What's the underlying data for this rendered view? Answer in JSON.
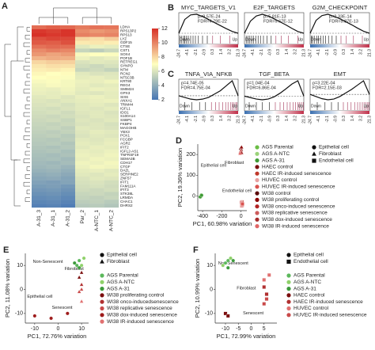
{
  "chart_data": [
    {
      "type": "heatmap",
      "panel_label": "A",
      "rows": [
        "LDHA",
        "RPS13P2",
        "RPS13",
        "LYZ",
        "GDF15",
        "CTSE",
        "CST1",
        "SOX4",
        "POF1B",
        "RETREG1",
        "SYNPO",
        "NTM",
        "RCN2",
        "NT5C3B",
        "KRT80",
        "REG4",
        "SMIM24",
        "GPX3",
        "SIX6",
        "ANXA1",
        "TRIM44",
        "IGFL1",
        "IDO1",
        "S100A14",
        "SSBP1",
        "FKBP4",
        "MAGOHB",
        "YBX3",
        "PCK1",
        "FCGBP",
        "AGR2",
        "IFIT2",
        "IGFL2-AS1",
        "TNFRSF19",
        "SEMA3B",
        "CDH17",
        "CTGF",
        "DAZL",
        "SERPINE2",
        "ZNF57",
        "IFIT1",
        "FAM111A",
        "IFIT3",
        "STK38L",
        "LRMDA",
        "CHAC1",
        "DHRS2"
      ],
      "columns": [
        "A-31_3",
        "A-31_1",
        "A-31_2",
        "Par_2",
        "A-NTC_1",
        "A-NTC_2"
      ],
      "values": [
        [
          10.5,
          10.8,
          10.6,
          10.2,
          10.4,
          10.3
        ],
        [
          11.8,
          11.6,
          11.9,
          9.8,
          9.5,
          9.7
        ],
        [
          12,
          11.8,
          11.9,
          10.1,
          9.9,
          10
        ],
        [
          11.2,
          11.5,
          11.4,
          8,
          7.8,
          8.2
        ],
        [
          11,
          10.9,
          11.2,
          7.5,
          7.6,
          7.4
        ],
        [
          10.4,
          10.6,
          10.5,
          6.2,
          6.5,
          6.3
        ],
        [
          9.8,
          10.1,
          9.9,
          5.5,
          5.2,
          5.6
        ],
        [
          9.5,
          9.2,
          9.4,
          6.8,
          7,
          6.9
        ],
        [
          8.8,
          9,
          8.9,
          6.5,
          6.2,
          6.4
        ],
        [
          8,
          8.2,
          8.1,
          6,
          6.2,
          6.1
        ],
        [
          7.6,
          7.8,
          7.7,
          5.8,
          5.6,
          5.9
        ],
        [
          7.4,
          7.5,
          7.3,
          5.5,
          5.7,
          5.4
        ],
        [
          7.2,
          7,
          7.1,
          6.2,
          6,
          6.1
        ],
        [
          7,
          7.1,
          6.9,
          6.3,
          6.4,
          6.2
        ],
        [
          6.8,
          6.9,
          6.7,
          6.5,
          6.4,
          6.6
        ],
        [
          6.6,
          6.8,
          6.7,
          6.4,
          6.2,
          6.3
        ],
        [
          6.5,
          6.4,
          6.6,
          6.3,
          6.5,
          6.4
        ],
        [
          6.4,
          6.3,
          6.5,
          6.2,
          6.1,
          6.3
        ],
        [
          6.2,
          6.3,
          6.1,
          6.4,
          6.5,
          6.3
        ],
        [
          6.1,
          6,
          6.2,
          6.3,
          6.4,
          6.5
        ],
        [
          6,
          6.1,
          5.9,
          6.2,
          6.3,
          6.1
        ],
        [
          5.9,
          5.8,
          6,
          6.2,
          6.1,
          6.3
        ],
        [
          5.8,
          5.9,
          5.7,
          6.1,
          6.2,
          6
        ],
        [
          5.7,
          5.6,
          5.8,
          6,
          6.2,
          6.1
        ],
        [
          5.6,
          5.7,
          5.5,
          6.1,
          6,
          6.2
        ],
        [
          5.5,
          5.4,
          5.6,
          6,
          6.1,
          5.9
        ],
        [
          5.4,
          5.5,
          5.3,
          6.2,
          6.1,
          6
        ],
        [
          5.3,
          5.2,
          5.4,
          6.1,
          6.3,
          6.2
        ],
        [
          5.2,
          5.3,
          5.1,
          6,
          6.2,
          6.1
        ],
        [
          5.1,
          5,
          5.2,
          6.2,
          6.1,
          6.3
        ],
        [
          5,
          5.1,
          4.9,
          6.3,
          6.2,
          6.4
        ],
        [
          4.9,
          4.8,
          5,
          6.2,
          6.4,
          6.3
        ],
        [
          4.8,
          4.9,
          4.7,
          6.4,
          6.3,
          6.5
        ],
        [
          4.7,
          4.6,
          4.8,
          6.5,
          6.4,
          6.6
        ],
        [
          4.6,
          4.7,
          4.5,
          6.4,
          6.6,
          6.5
        ],
        [
          4.5,
          4.4,
          4.6,
          6.6,
          6.5,
          6.7
        ],
        [
          4.4,
          4.5,
          4.3,
          6.5,
          6.7,
          6.6
        ],
        [
          4.2,
          4.3,
          4.1,
          6.3,
          6.4,
          6.2
        ],
        [
          4,
          4.1,
          3.9,
          6.2,
          6.1,
          6.3
        ],
        [
          3.8,
          3.9,
          3.7,
          6,
          6.2,
          6.1
        ],
        [
          3.6,
          3.5,
          3.7,
          5.9,
          6,
          5.8
        ],
        [
          3.4,
          3.5,
          3.3,
          5.8,
          5.9,
          5.7
        ],
        [
          3.2,
          3.3,
          3.1,
          5.7,
          5.6,
          5.8
        ],
        [
          3,
          3.1,
          2.9,
          5.5,
          5.6,
          5.4
        ],
        [
          2.8,
          2.9,
          2.7,
          5.4,
          5.3,
          5.5
        ],
        [
          2.6,
          2.7,
          2.5,
          5.2,
          5.3,
          5.1
        ],
        [
          2.4,
          2.5,
          2.3,
          5,
          5.1,
          4.9
        ]
      ],
      "clim": [
        2,
        12
      ],
      "cticks": [
        2,
        4,
        6,
        8,
        10,
        12
      ],
      "colors": [
        "#4575b4",
        "#ffffbf",
        "#d73027"
      ]
    },
    {
      "type": "gsea",
      "panel_label": "B",
      "title": "MYC_TARGETS_V1",
      "stats": [
        "p=9.57E-24",
        "FDR=4.79E-22"
      ],
      "es": [
        0,
        0.45,
        0.6,
        0.62,
        0.55,
        0.45,
        0.35,
        0.25,
        0.15,
        0.06,
        0
      ],
      "hits": [
        0.02,
        0.05,
        0.08,
        0.1,
        0.13,
        0.16,
        0.2,
        0.24,
        0.28,
        0.33,
        0.4,
        0.48,
        0.57,
        0.7,
        0.86
      ],
      "xlabels": [
        "-24.7",
        "-4.1",
        "-2.1",
        "-0.9",
        "0.3",
        "1.4",
        "3.2",
        "21.3"
      ],
      "left_label": "Down",
      "right_label": "Up"
    },
    {
      "type": "gsea",
      "title": "E2F_TARGETS",
      "stats": [
        "p=5.81E-13",
        "FDR=9.67E-12"
      ],
      "es": [
        0,
        0.35,
        0.5,
        0.55,
        0.5,
        0.42,
        0.33,
        0.24,
        0.14,
        0.05,
        0
      ],
      "hits": [
        0.03,
        0.06,
        0.09,
        0.12,
        0.15,
        0.19,
        0.23,
        0.27,
        0.32,
        0.38,
        0.45,
        0.53,
        0.62,
        0.74,
        0.9
      ],
      "xlabels": [
        "-24.7",
        "-4.1",
        "-2.1",
        "-0.9",
        "0.3",
        "1.4",
        "3.2",
        "21.3"
      ],
      "left_label": "Down",
      "right_label": "Up"
    },
    {
      "type": "gsea",
      "title": "G2M_CHECKPOINT",
      "stats": [
        "p=2.33E-14",
        "FDR=5.87E-13"
      ],
      "es": [
        0,
        0.38,
        0.52,
        0.56,
        0.5,
        0.43,
        0.34,
        0.25,
        0.15,
        0.06,
        0
      ],
      "hits": [
        0.02,
        0.04,
        0.07,
        0.11,
        0.14,
        0.18,
        0.22,
        0.26,
        0.31,
        0.37,
        0.44,
        0.52,
        0.61,
        0.73,
        0.88
      ],
      "xlabels": [
        "-24.7",
        "-4.1",
        "-2.1",
        "-0.9",
        "0.3",
        "1.4",
        "3.2",
        "21.3"
      ],
      "left_label": "Down",
      "right_label": "Up"
    },
    {
      "type": "gsea",
      "panel_label": "C",
      "title": "TNFA_VIA_NFKB",
      "stats": [
        "p=4.74E-05",
        "FDR=4.75E-04"
      ],
      "es": [
        0,
        -0.05,
        -0.1,
        -0.12,
        -0.1,
        -0.05,
        0.05,
        0.15,
        0.3,
        0.45,
        0
      ],
      "hits": [
        0.1,
        0.22,
        0.35,
        0.45,
        0.55,
        0.62,
        0.68,
        0.74,
        0.79,
        0.83,
        0.87,
        0.9,
        0.93,
        0.96,
        0.98
      ],
      "xlabels": [
        "-24.7",
        "-4.1",
        "-2.1",
        "-0.9",
        "0.3",
        "1.4",
        "3.2",
        "21.3"
      ],
      "left_label": "Down",
      "right_label": "Up"
    },
    {
      "type": "gsea",
      "title": "TGF_BETA",
      "stats": [
        "p=1.04E-04",
        "FDR=6.86E-04"
      ],
      "es": [
        0,
        -0.04,
        -0.08,
        -0.1,
        -0.08,
        -0.02,
        0.08,
        0.2,
        0.33,
        0.42,
        0
      ],
      "hits": [
        0.08,
        0.2,
        0.3,
        0.42,
        0.52,
        0.6,
        0.66,
        0.72,
        0.77,
        0.82,
        0.86,
        0.9,
        0.93,
        0.96,
        0.99
      ],
      "xlabels": [
        "-24.7",
        "-4.1",
        "-2.1",
        "-0.9",
        "0.3",
        "1.4",
        "3.2",
        "21.3"
      ],
      "left_label": "Down",
      "right_label": "Up"
    },
    {
      "type": "gsea",
      "title": "EMT",
      "stats": [
        "p=3.22E-04",
        "FDR=2.15E-03"
      ],
      "es": [
        0,
        -0.06,
        -0.12,
        -0.15,
        -0.13,
        -0.06,
        0.04,
        0.14,
        0.26,
        0.38,
        0
      ],
      "hits": [
        0.12,
        0.25,
        0.36,
        0.47,
        0.56,
        0.63,
        0.69,
        0.75,
        0.8,
        0.84,
        0.88,
        0.91,
        0.94,
        0.97,
        0.99
      ],
      "xlabels": [
        "-24.7",
        "-4.1",
        "-2.1",
        "-0.9",
        "0.3",
        "1.4",
        "3.2",
        "21.3"
      ],
      "left_label": "Down",
      "right_label": "Up"
    },
    {
      "type": "scatter",
      "panel_label": "D",
      "xlabel": "PC1, 60.98% variation",
      "ylabel": "PC2, 19.36% variation",
      "xlim": [
        -450,
        60
      ],
      "ylim": [
        -70,
        250
      ],
      "xticks": [
        -400,
        -200,
        0
      ],
      "yticks": [
        0,
        100,
        200
      ],
      "annotations": [
        "Epithelial cell",
        "Fibroblast",
        "Endothelial cell"
      ],
      "shape_legend": [
        {
          "name": "Epithelial cell",
          "marker": "circle"
        },
        {
          "name": "Fibroblast",
          "marker": "triangle"
        },
        {
          "name": "Endothelial cell",
          "marker": "square"
        }
      ],
      "series": [
        {
          "name": "AGS Parental",
          "color": "#6abd45",
          "marker": "circle",
          "x": [
            -420,
            -415,
            -418
          ],
          "y": [
            0,
            5,
            -3
          ]
        },
        {
          "name": "AGS A-NTC",
          "color": "#9bd37a",
          "marker": "circle",
          "x": [
            -412,
            -422
          ],
          "y": [
            2,
            -2
          ]
        },
        {
          "name": "AGS A-31",
          "color": "#3f9b35",
          "marker": "circle",
          "x": [
            -425,
            -410
          ],
          "y": [
            -4,
            4
          ]
        },
        {
          "name": "HAEC control",
          "color": "#7a1010",
          "marker": "square",
          "x": [
            8,
            5
          ],
          "y": [
            -40,
            -35
          ]
        },
        {
          "name": "HAEC IR-induced senescence",
          "color": "#c0392b",
          "marker": "square",
          "x": [
            10,
            12
          ],
          "y": [
            -28,
            -45
          ]
        },
        {
          "name": "HUVEC control",
          "color": "#e8a0a0",
          "marker": "square",
          "x": [
            2,
            6
          ],
          "y": [
            -30,
            -48
          ]
        },
        {
          "name": "HUVEC IR-induced senescence",
          "color": "#d9534f",
          "marker": "square",
          "x": [
            14
          ],
          "y": [
            -38
          ]
        },
        {
          "name": "WI38 control",
          "color": "#5b0b0b",
          "marker": "triangle",
          "x": [
            -5,
            2
          ],
          "y": [
            230,
            225
          ]
        },
        {
          "name": "WI38 proliferating control",
          "color": "#8b0000",
          "marker": "triangle",
          "x": [
            0,
            5
          ],
          "y": [
            222,
            235
          ]
        },
        {
          "name": "WI38 onco-induced senescence",
          "color": "#b22222",
          "marker": "triangle",
          "x": [
            -8
          ],
          "y": [
            212
          ]
        },
        {
          "name": "WI38 replicative senescence",
          "color": "#cd5c5c",
          "marker": "triangle",
          "x": [
            -2
          ],
          "y": [
            218
          ]
        },
        {
          "name": "WI38 dox-induced senescence",
          "color": "#a52a2a",
          "marker": "triangle",
          "x": [
            6
          ],
          "y": [
            208
          ]
        },
        {
          "name": "WI38 IR-induced senescence",
          "color": "#e06666",
          "marker": "triangle",
          "x": [
            -10
          ],
          "y": [
            205
          ]
        }
      ]
    },
    {
      "type": "scatter",
      "panel_label": "E",
      "xlabel": "PC1, 72.76% variation",
      "ylabel": "PC2, 11.08% variation",
      "xlim": [
        -14,
        13
      ],
      "ylim": [
        -14,
        15
      ],
      "xticks": [
        -10,
        0,
        10
      ],
      "yticks": [
        -10,
        0,
        10
      ],
      "annotations": [
        "Non-Senescent",
        "Fibroblast",
        "Epithelial cell",
        "Senescent"
      ],
      "shape_legend": [
        {
          "name": "Epithelial cell",
          "marker": "circle"
        },
        {
          "name": "Fibroblast",
          "marker": "triangle"
        }
      ],
      "series": [
        {
          "name": "AGS Parental",
          "color": "#5cb85c",
          "marker": "circle",
          "x": [
            9,
            8
          ],
          "y": [
            12,
            10
          ]
        },
        {
          "name": "AGS A-NTC",
          "color": "#8fd16a",
          "marker": "circle",
          "x": [
            10,
            11
          ],
          "y": [
            10,
            13
          ]
        },
        {
          "name": "AGS A-31",
          "color": "#3c9a3c",
          "marker": "circle",
          "x": [
            7,
            9
          ],
          "y": [
            11,
            9
          ]
        },
        {
          "name": "WI38 proliferating control",
          "color": "#7b0e0e",
          "marker": "triangle",
          "x": [
            9,
            10
          ],
          "y": [
            5,
            7
          ]
        },
        {
          "name": "WI38 onco-inducedsenescence",
          "color": "#b03030",
          "marker": "triangle",
          "x": [
            10
          ],
          "y": [
            2
          ]
        },
        {
          "name": "WI38 replicative senescence",
          "color": "#c94a4a",
          "marker": "triangle",
          "x": [
            9,
            10
          ],
          "y": [
            -1,
            0
          ]
        },
        {
          "name": "WI38 dox-induced senescence",
          "color": "#9e1c1c",
          "marker": "circle",
          "x": [
            -10,
            -3,
            4
          ],
          "y": [
            -11,
            -12,
            -10
          ]
        },
        {
          "name": "WI38 IR-induced senescence",
          "color": "#e07070",
          "marker": "triangle",
          "x": [
            10
          ],
          "y": [
            -5
          ]
        }
      ]
    },
    {
      "type": "scatter",
      "panel_label": "F",
      "xlabel": "PC1, 72.99% variation",
      "ylabel": "PC2, 10.99% variation",
      "xlim": [
        -14,
        10
      ],
      "ylim": [
        -14,
        15
      ],
      "xticks": [
        -10,
        -5,
        0,
        5
      ],
      "yticks": [
        -10,
        0,
        10
      ],
      "annotations": [
        "Non-Senescent",
        "Fibroblast",
        "Senescent"
      ],
      "shape_legend": [
        {
          "name": "Epithelial cell",
          "marker": "circle"
        },
        {
          "name": "Endothelial cell",
          "marker": "square"
        }
      ],
      "series": [
        {
          "name": "AGS Parental",
          "color": "#5cb85c",
          "marker": "circle",
          "x": [
            -10,
            -9
          ],
          "y": [
            11,
            12
          ]
        },
        {
          "name": "AGS A-NTC",
          "color": "#8fd16a",
          "marker": "circle",
          "x": [
            -8,
            -11
          ],
          "y": [
            13,
            10
          ]
        },
        {
          "name": "AGS A-31",
          "color": "#3c9a3c",
          "marker": "circle",
          "x": [
            -9,
            -7
          ],
          "y": [
            9,
            12
          ]
        },
        {
          "name": "HAEC control",
          "color": "#7b0e0e",
          "marker": "square",
          "x": [
            -10,
            -9
          ],
          "y": [
            -10,
            -11
          ]
        },
        {
          "name": "HAEC IR-induced senescence",
          "color": "#b03030",
          "marker": "square",
          "x": [
            5,
            6
          ],
          "y": [
            1,
            -2
          ]
        },
        {
          "name": "HUVEC control",
          "color": "#e07070",
          "marker": "square",
          "x": [
            5,
            7
          ],
          "y": [
            4,
            6
          ]
        },
        {
          "name": "HUVEC IR-induced senescence",
          "color": "#c94a4a",
          "marker": "square",
          "x": [
            6,
            5
          ],
          "y": [
            -4,
            -6
          ]
        }
      ]
    }
  ]
}
